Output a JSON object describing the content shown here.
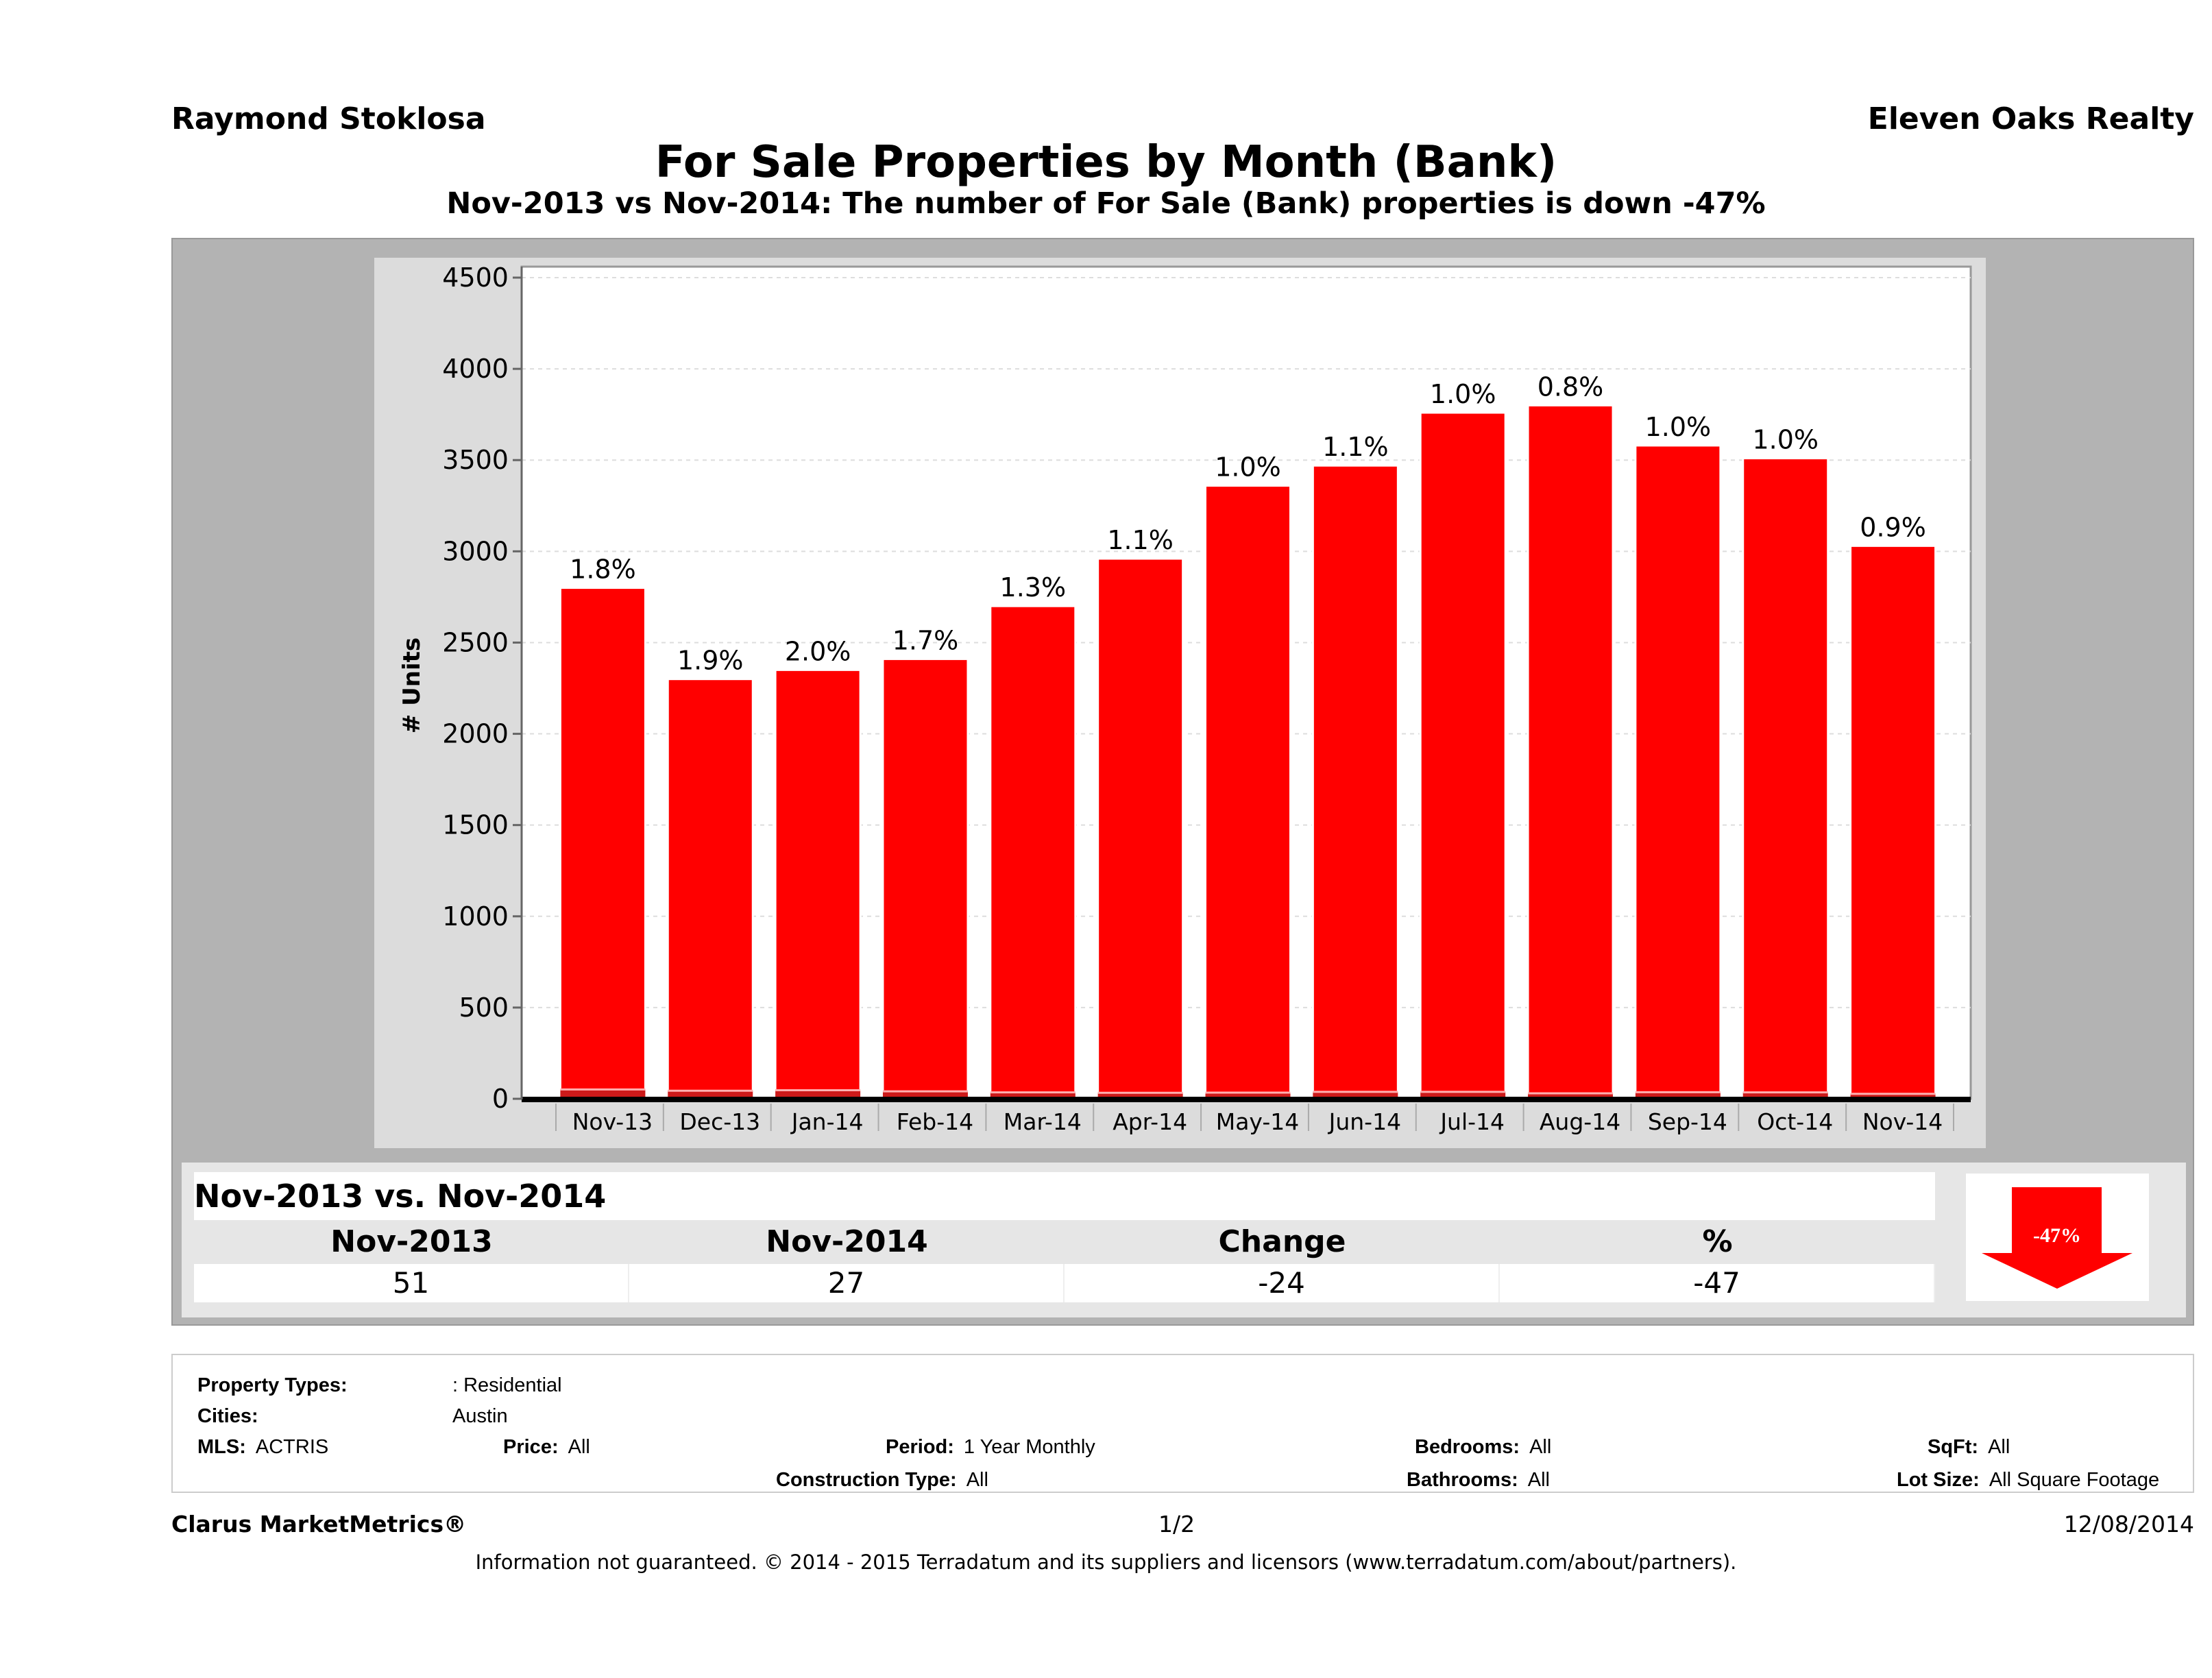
{
  "header": {
    "agent": "Raymond Stoklosa",
    "brokerage": "Eleven Oaks Realty"
  },
  "title": "For Sale Properties by Month (Bank)",
  "subtitle": "Nov-2013 vs Nov-2014: The number of For Sale (Bank)  properties is down -47%",
  "chart_data": {
    "type": "bar",
    "stacked": true,
    "ylabel": "# Units",
    "ylim": [
      0,
      4500
    ],
    "yticks": [
      "0",
      "500",
      "1000",
      "1500",
      "2000",
      "2500",
      "3000",
      "3500",
      "4000",
      "4500"
    ],
    "grid": true,
    "categories": [
      "Nov-13",
      "Dec-13",
      "Jan-14",
      "Feb-14",
      "Mar-14",
      "Apr-14",
      "May-14",
      "Jun-14",
      "Jul-14",
      "Aug-14",
      "Sep-14",
      "Oct-14",
      "Nov-14"
    ],
    "totals": [
      2800,
      2300,
      2350,
      2410,
      2700,
      2960,
      3360,
      3470,
      3760,
      3800,
      3580,
      3510,
      3030
    ],
    "bank": [
      51,
      44,
      47,
      41,
      35,
      33,
      34,
      38,
      38,
      30,
      36,
      35,
      27
    ],
    "data_labels": [
      "1.8%",
      "1.9%",
      "2.0%",
      "1.7%",
      "1.3%",
      "1.1%",
      "1.0%",
      "1.1%",
      "1.0%",
      "0.8%",
      "1.0%",
      "1.0%",
      "0.9%"
    ],
    "colors": {
      "total": "#ff0000",
      "bank": "#cc1a1a"
    }
  },
  "comparison": {
    "title": "Nov-2013 vs. Nov-2014",
    "headers": [
      "Nov-2013",
      "Nov-2014",
      "Change",
      "%"
    ],
    "values": [
      "51",
      "27",
      "-24",
      "-47"
    ],
    "badge": "-47%",
    "direction": "down",
    "badge_color": "#ff0000"
  },
  "filters": {
    "property_types_label": "Property Types:",
    "property_types": ": Residential",
    "cities_label": "Cities:",
    "cities": "Austin",
    "mls_label": "MLS:",
    "mls": "ACTRIS",
    "price_label": "Price:",
    "price": "All",
    "period_label": "Period:",
    "period": "1 Year Monthly",
    "construction_label": "Construction Type:",
    "construction": "All",
    "bedrooms_label": "Bedrooms:",
    "bedrooms": "All",
    "bathrooms_label": "Bathrooms:",
    "bathrooms": "All",
    "sqft_label": "SqFt:",
    "sqft": "All",
    "lot_label": "Lot Size:",
    "lot": "All Square Footage"
  },
  "footer": {
    "product": "Clarus MarketMetrics®",
    "page": "1/2",
    "date": "12/08/2014",
    "disclaimer": "Information not guaranteed. © 2014 - 2015 Terradatum and its suppliers and licensors (www.terradatum.com/about/partners)."
  }
}
